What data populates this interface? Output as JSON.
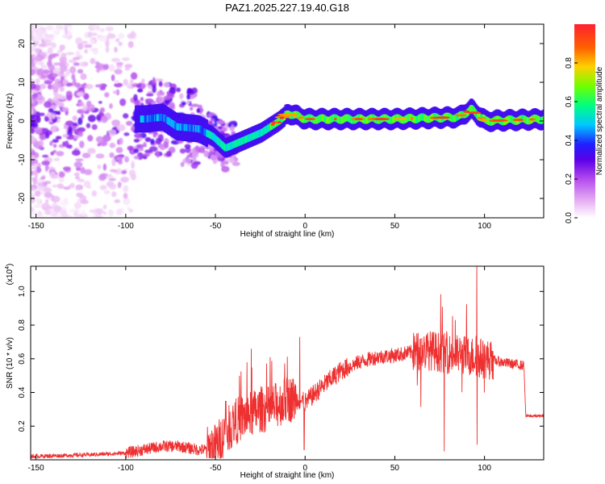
{
  "title": "PAZ1.2025.227.19.40.G18",
  "colors": {
    "snr_line": "#ee3030",
    "axis": "#000000",
    "background": "#ffffff",
    "colormap": [
      "#ffffff",
      "#e9b6f4",
      "#b44bee",
      "#5a00e8",
      "#2020ff",
      "#00c8ff",
      "#00ff80",
      "#70ff00",
      "#ffd000",
      "#ff6000",
      "#ff2030"
    ]
  },
  "chart_data": [
    {
      "type": "heatmap",
      "xlabel": "Height of straight line (km)",
      "ylabel": "Frequency (Hz)",
      "xlim": [
        -153,
        133
      ],
      "ylim": [
        -25,
        25
      ],
      "xticks": [
        -150,
        -100,
        -50,
        0,
        50,
        100
      ],
      "yticks": [
        -20,
        -10,
        0,
        10,
        20
      ],
      "colorbar": {
        "label": "Normalized spectral amplitude",
        "range": [
          0,
          1
        ],
        "ticks": [
          "0.0",
          "0.2",
          "0.4",
          "0.6",
          "0.8"
        ]
      },
      "ridge": [
        {
          "x": -90,
          "y": 0.5
        },
        {
          "x": -80,
          "y": 1
        },
        {
          "x": -72,
          "y": -1.5
        },
        {
          "x": -60,
          "y": -2
        },
        {
          "x": -52,
          "y": -4
        },
        {
          "x": -45,
          "y": -7
        },
        {
          "x": -35,
          "y": -5
        },
        {
          "x": -25,
          "y": -3
        },
        {
          "x": -15,
          "y": 0
        },
        {
          "x": -10,
          "y": 2
        },
        {
          "x": 0,
          "y": 0.5
        },
        {
          "x": 50,
          "y": 0.5
        },
        {
          "x": 85,
          "y": 1
        },
        {
          "x": 92,
          "y": 3
        },
        {
          "x": 100,
          "y": 0
        },
        {
          "x": 133,
          "y": 0.5
        }
      ]
    },
    {
      "type": "line",
      "xlabel": "Height of straight line (km)",
      "ylabel": "SNR (10 * v/v)",
      "scale_label": "(x10",
      "scale_exp": "4",
      "xlim": [
        -153,
        133
      ],
      "ylim": [
        0,
        1.15
      ],
      "xticks": [
        -150,
        -100,
        -50,
        0,
        50,
        100
      ],
      "yticks": [
        "0.2",
        "0.4",
        "0.6",
        "0.8",
        "1.0"
      ],
      "series": [
        {
          "x": [
            -153,
            -120,
            -100,
            -90,
            -80,
            -70,
            -60,
            -55,
            -50,
            -45,
            -40,
            -35,
            -30,
            -25,
            -20,
            -15,
            -10,
            -5,
            0,
            10,
            20,
            30,
            40,
            50,
            60,
            70,
            80,
            90,
            100,
            110,
            115,
            122,
            123,
            133
          ],
          "values": [
            0.02,
            0.03,
            0.04,
            0.06,
            0.08,
            0.08,
            0.06,
            0.06,
            0.08,
            0.15,
            0.22,
            0.25,
            0.27,
            0.3,
            0.3,
            0.33,
            0.36,
            0.36,
            0.34,
            0.44,
            0.53,
            0.58,
            0.61,
            0.62,
            0.64,
            0.65,
            0.63,
            0.62,
            0.6,
            0.58,
            0.57,
            0.56,
            0.26,
            0.26
          ]
        }
      ]
    }
  ]
}
